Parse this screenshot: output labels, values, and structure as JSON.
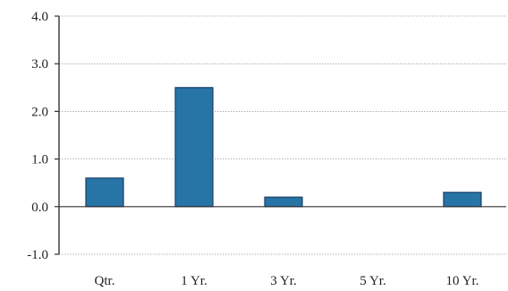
{
  "chart_data": {
    "type": "bar",
    "title": "",
    "xlabel": "",
    "ylabel": "",
    "categories": [
      "Qtr.",
      "1 Yr.",
      "3 Yr.",
      "5 Yr.",
      "10 Yr."
    ],
    "values": [
      0.6,
      2.5,
      0.2,
      0.0,
      0.3
    ],
    "ylim": [
      -1.0,
      4.0
    ],
    "yticks": [
      -1.0,
      0.0,
      1.0,
      2.0,
      3.0,
      4.0
    ],
    "ytick_labels": [
      "-1.0",
      "0.0",
      "1.0",
      "2.0",
      "3.0",
      "4.0"
    ],
    "grid": true,
    "legend": "none",
    "colors": {
      "bar": "#2774a6",
      "bar_edge": "#1b3f66",
      "axis": "#333333",
      "grid": "#9a9a9a"
    }
  }
}
